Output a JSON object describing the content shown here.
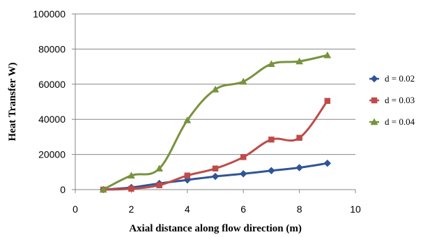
{
  "chart_data": {
    "type": "line",
    "title": "",
    "xlabel": "Axial distance along flow direction (m)",
    "ylabel": "Heat Transfer W)",
    "xlim": [
      0,
      10
    ],
    "ylim": [
      0,
      100000
    ],
    "x_ticks": [
      0,
      2,
      4,
      6,
      8,
      10
    ],
    "y_ticks": [
      0,
      20000,
      40000,
      60000,
      80000,
      100000
    ],
    "grid": "horizontal",
    "legend_position": "right",
    "series": [
      {
        "name": "d = 0.02",
        "color": "#2F5597",
        "marker": "diamond",
        "x": [
          1,
          2,
          3,
          4,
          5,
          6,
          7,
          8,
          9
        ],
        "y": [
          0,
          1200,
          3500,
          5500,
          7500,
          9000,
          10800,
          12500,
          15000
        ]
      },
      {
        "name": "d = 0.03",
        "color": "#BE4B48",
        "marker": "square",
        "x": [
          1,
          2,
          3,
          4,
          5,
          6,
          7,
          8,
          9
        ],
        "y": [
          0,
          500,
          2500,
          8000,
          12000,
          18500,
          28500,
          29500,
          50500
        ]
      },
      {
        "name": "d = 0.04",
        "color": "#77933C",
        "marker": "triangle",
        "x": [
          1,
          2,
          3,
          4,
          5,
          6,
          7,
          8,
          9
        ],
        "y": [
          0,
          8000,
          12000,
          39500,
          57000,
          61500,
          71500,
          73000,
          76500
        ]
      }
    ]
  }
}
